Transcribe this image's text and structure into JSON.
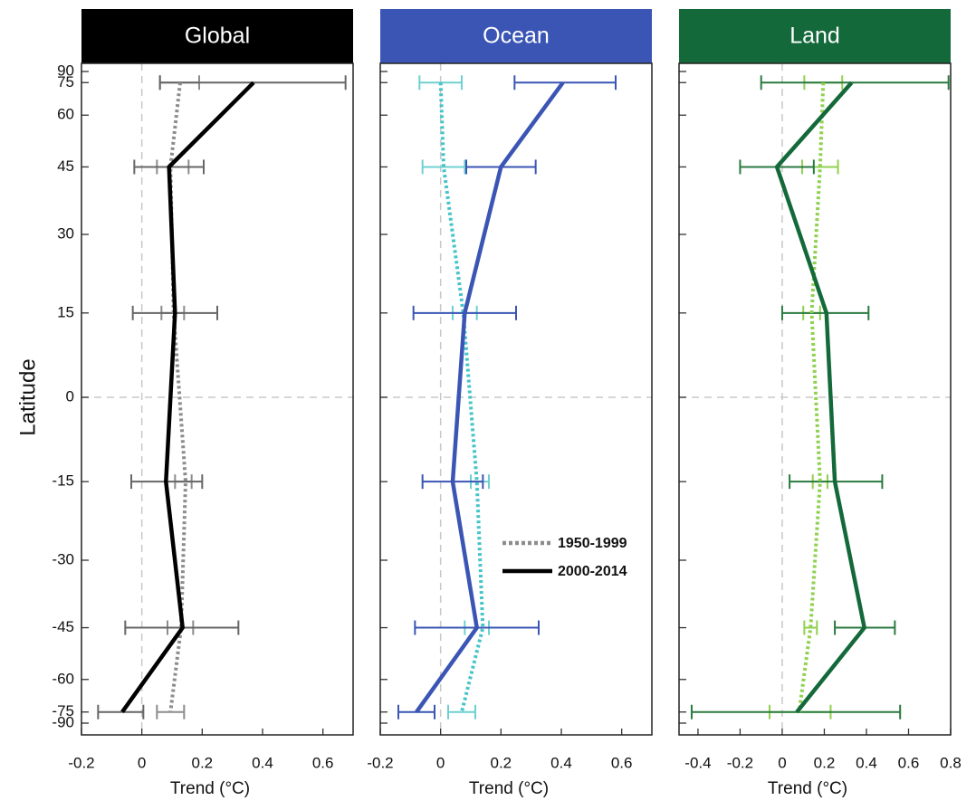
{
  "chart_data": {
    "type": "line",
    "ylabel": "Latitude",
    "yscale": "sine",
    "ylim": [
      -90,
      90
    ],
    "yticks": [
      90,
      75,
      60,
      45,
      30,
      15,
      0,
      -15,
      -30,
      -45,
      -60,
      -75,
      -90
    ],
    "y": [
      75,
      45,
      15,
      -15,
      -45,
      -75
    ],
    "zero_lines": true,
    "legend": [
      {
        "name": "1950-1999",
        "color": "#8c8c8c",
        "dashed": true
      },
      {
        "name": "2000-2014",
        "color": "#000000",
        "dashed": false
      }
    ],
    "panels": [
      {
        "title": "Global",
        "header_color": "#000000",
        "xlabel": "Trend (°C)",
        "xlim": [
          -0.2,
          0.7
        ],
        "xticks": [
          -0.2,
          0,
          0.2,
          0.4,
          0.6
        ],
        "series": [
          {
            "color": "#8c8c8c",
            "bar_color": "#8c8c8c",
            "dashed": true,
            "values": [
              0.127,
              0.095,
              0.105,
              0.145,
              0.13,
              0.095
            ],
            "lower": [
              0.06,
              0.05,
              0.065,
              0.11,
              0.085,
              0.05
            ],
            "upper": [
              0.19,
              0.155,
              0.14,
              0.165,
              0.17,
              0.14
            ]
          },
          {
            "color": "#000000",
            "bar_color": "#666666",
            "dashed": false,
            "values": [
              0.37,
              0.09,
              0.11,
              0.08,
              0.135,
              -0.065
            ],
            "lower": [
              0.06,
              -0.025,
              -0.03,
              -0.035,
              -0.055,
              -0.145
            ],
            "upper": [
              0.675,
              0.205,
              0.25,
              0.2,
              0.32,
              0.005
            ]
          }
        ]
      },
      {
        "title": "Ocean",
        "header_color": "#3a55b4",
        "xlabel": "Trend (°C)",
        "xlim": [
          -0.2,
          0.7
        ],
        "xticks": [
          -0.2,
          0,
          0.2,
          0.4,
          0.6
        ],
        "series": [
          {
            "color": "#45c4c8",
            "bar_color": "#6fd0d0",
            "dashed": true,
            "values": [
              0.0,
              0.01,
              0.075,
              0.12,
              0.14,
              0.07
            ],
            "lower": [
              -0.07,
              -0.06,
              0.04,
              0.1,
              0.08,
              0.025
            ],
            "upper": [
              0.07,
              0.08,
              0.12,
              0.16,
              0.16,
              0.115
            ]
          },
          {
            "color": "#3a55b4",
            "bar_color": "#3a55b4",
            "dashed": false,
            "values": [
              0.405,
              0.2,
              0.08,
              0.04,
              0.12,
              -0.08
            ],
            "lower": [
              0.245,
              0.085,
              -0.09,
              -0.06,
              -0.085,
              -0.14
            ],
            "upper": [
              0.58,
              0.315,
              0.25,
              0.14,
              0.325,
              -0.02
            ]
          }
        ]
      },
      {
        "title": "Land",
        "header_color": "#14693a",
        "xlabel": "Trend (°C)",
        "xlim": [
          -0.49,
          0.8
        ],
        "xticks": [
          -0.4,
          -0.2,
          0,
          0.2,
          0.4,
          0.6,
          0.8
        ],
        "series": [
          {
            "color": "#8fd14f",
            "bar_color": "#8fd14f",
            "dashed": true,
            "values": [
              0.195,
              0.18,
              0.14,
              0.18,
              0.135,
              0.08
            ],
            "lower": [
              0.105,
              0.095,
              0.1,
              0.145,
              0.105,
              -0.06
            ],
            "upper": [
              0.285,
              0.265,
              0.18,
              0.215,
              0.165,
              0.23
            ]
          },
          {
            "color": "#14693a",
            "bar_color": "#2a7a40",
            "dashed": false,
            "values": [
              0.33,
              -0.025,
              0.21,
              0.25,
              0.39,
              0.07
            ],
            "lower": [
              -0.1,
              -0.2,
              0.0,
              0.035,
              0.25,
              -0.43
            ],
            "upper": [
              0.79,
              0.15,
              0.41,
              0.475,
              0.535,
              0.56
            ]
          }
        ]
      }
    ]
  }
}
